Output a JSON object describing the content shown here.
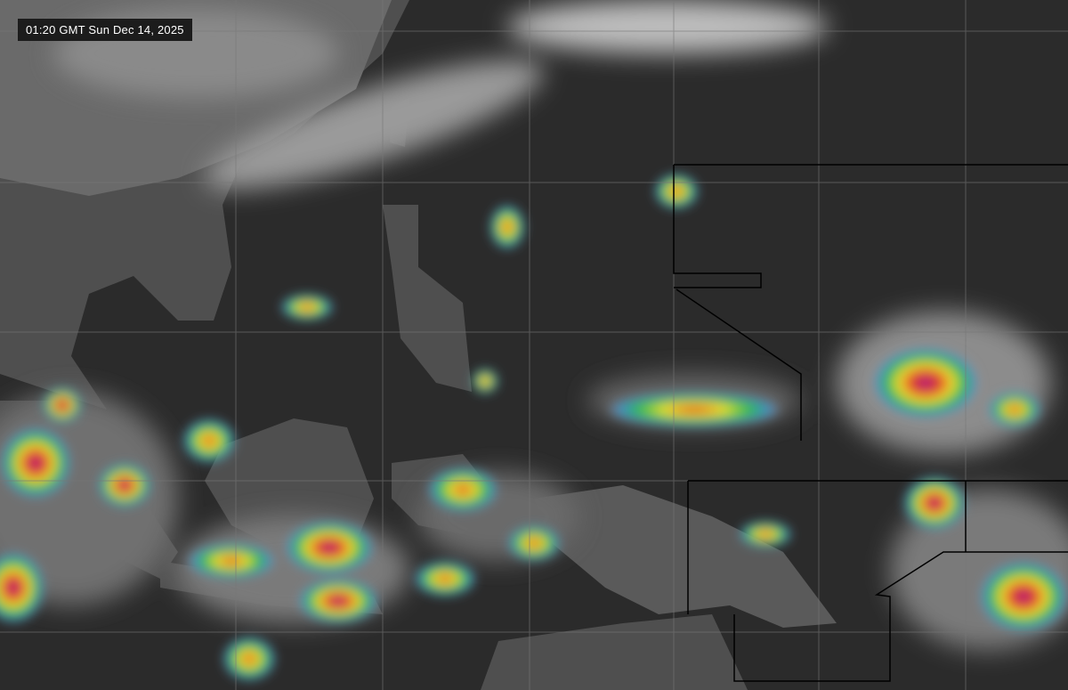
{
  "timestamp": "01:20 GMT Sun Dec 14, 2025",
  "colors": {
    "background": "#2b2b2b",
    "land": "#555555",
    "cloud_low": "#9a9a9a",
    "cloud_high": "#e0e0e0",
    "convection_scale": [
      "#3a8fd0",
      "#2fb84a",
      "#f0e030",
      "#e03020",
      "#a020a0"
    ]
  }
}
